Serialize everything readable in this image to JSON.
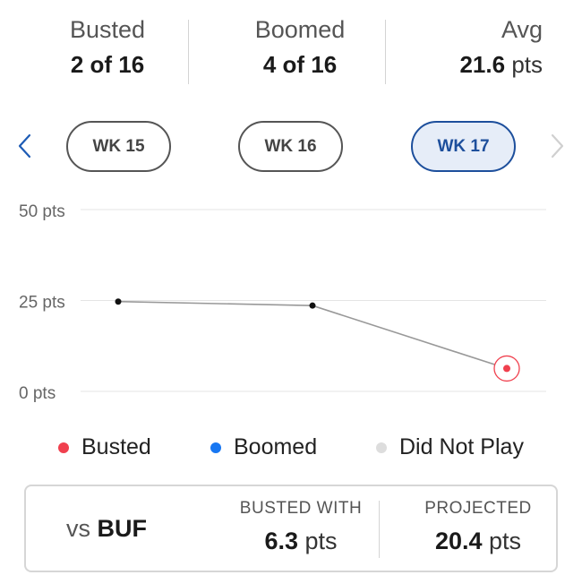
{
  "stats": {
    "busted": {
      "label": "Busted",
      "value": "2 of 16"
    },
    "boomed": {
      "label": "Boomed",
      "value": "4 of 16"
    },
    "avg": {
      "label": "Avg",
      "value": "21.6",
      "unit": "pts"
    }
  },
  "weeks": {
    "prev_icon": "chevron-left-icon",
    "next_icon": "chevron-right-icon",
    "items": [
      {
        "label": "WK 15",
        "active": false
      },
      {
        "label": "WK 16",
        "active": false
      },
      {
        "label": "WK 17",
        "active": true
      }
    ]
  },
  "chart_data": {
    "type": "line",
    "categories": [
      "WK 15",
      "WK 16",
      "WK 17"
    ],
    "series": [
      {
        "values": [
          24.7,
          23.6,
          6.3
        ],
        "status": [
          "normal",
          "normal",
          "busted"
        ]
      }
    ],
    "ylim": [
      0,
      50
    ],
    "yticks": [
      0,
      25,
      50
    ],
    "ytick_labels": [
      "0 pts",
      "25 pts",
      "50 pts"
    ],
    "grid": true,
    "legend": [
      {
        "label": "Busted",
        "color": "#f0404e"
      },
      {
        "label": "Boomed",
        "color": "#1877f2"
      },
      {
        "label": "Did Not Play",
        "color": "#dddddd"
      }
    ],
    "colors": {
      "line": "#999999",
      "point": "#111111",
      "busted": "#f0404e",
      "grid": "#e4e4e4"
    }
  },
  "card": {
    "opponent_prefix": "vs",
    "opponent": "BUF",
    "busted_with": {
      "label": "BUSTED WITH",
      "value": "6.3",
      "unit": "pts"
    },
    "projected": {
      "label": "PROJECTED",
      "value": "20.4",
      "unit": "pts"
    }
  }
}
